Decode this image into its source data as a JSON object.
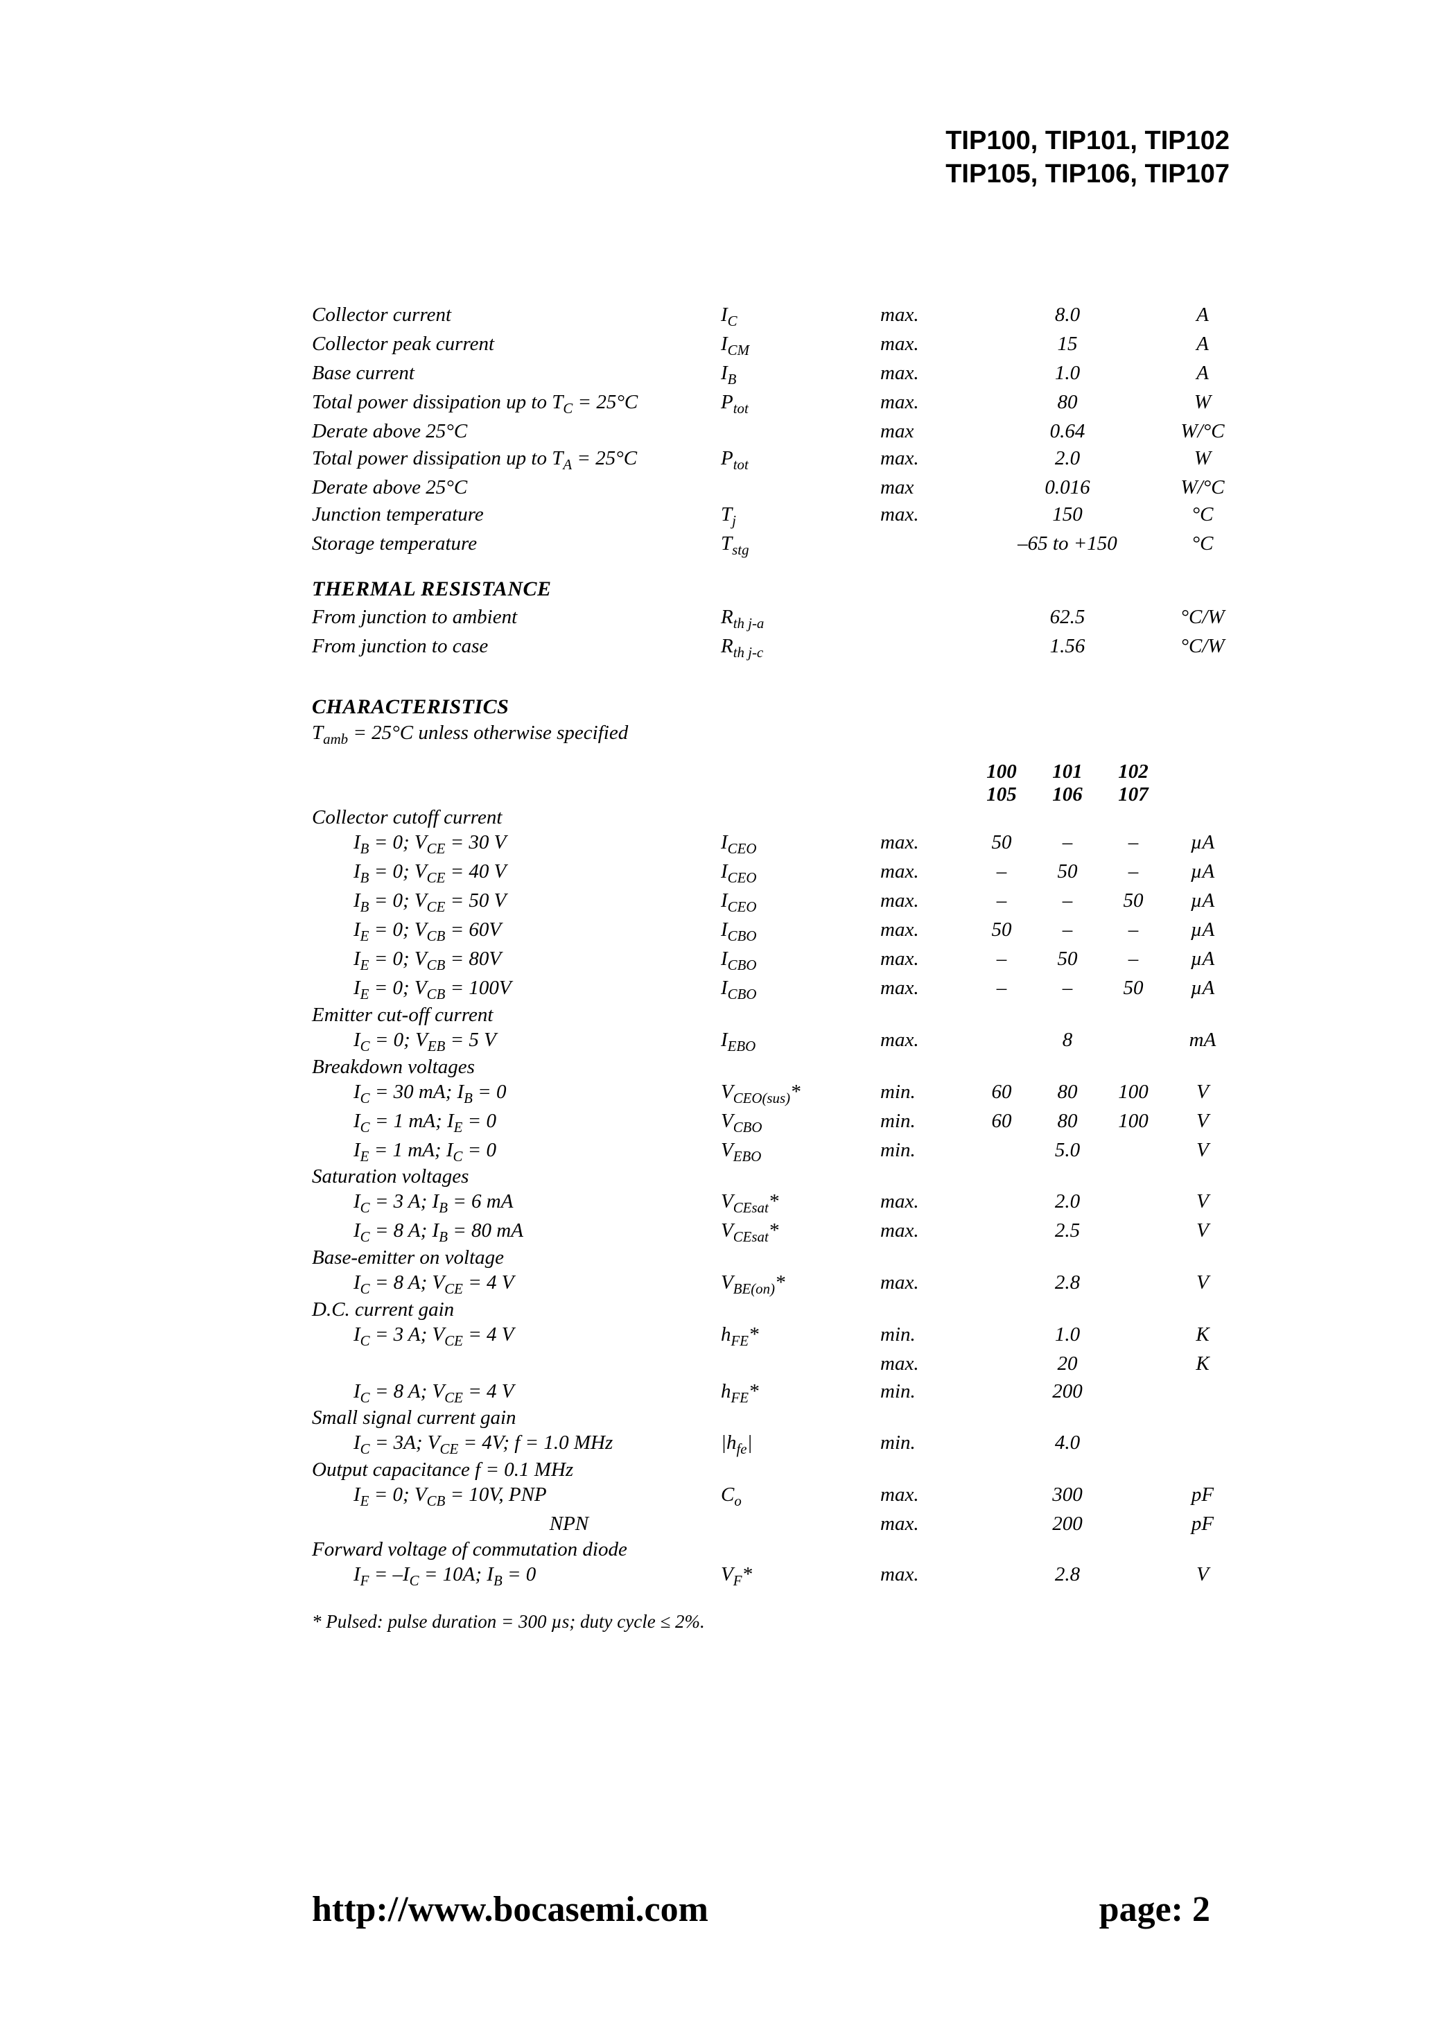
{
  "header": {
    "line1": "TIP100, TIP101, TIP102",
    "line2": "TIP105, TIP106, TIP107"
  },
  "abs_max": [
    {
      "label": "Collector current",
      "sym": "I_C",
      "lim": "max.",
      "val": "8.0",
      "unit": "A"
    },
    {
      "label": "Collector peak current",
      "sym": "I_CM",
      "lim": "max.",
      "val": "15",
      "unit": "A"
    },
    {
      "label": "Base current",
      "sym": "I_B",
      "lim": "max.",
      "val": "1.0",
      "unit": "A"
    },
    {
      "label": "Total power dissipation up to T_C = 25°C",
      "sym": "P_tot",
      "lim": "max.",
      "val": "80",
      "unit": "W"
    },
    {
      "label": "Derate above 25°C",
      "sym": "",
      "lim": "max",
      "val": "0.64",
      "unit": "W/°C"
    },
    {
      "label": "Total power dissipation up to T_A = 25°C",
      "sym": "P_tot",
      "lim": "max.",
      "val": "2.0",
      "unit": "W"
    },
    {
      "label": "Derate above 25°C",
      "sym": "",
      "lim": "max",
      "val": "0.016",
      "unit": "W/°C"
    },
    {
      "label": "Junction temperature",
      "sym": "T_j",
      "lim": "max.",
      "val": "150",
      "unit": "°C"
    },
    {
      "label": "Storage temperature",
      "sym": "T_stg",
      "lim": "",
      "val": "–65 to +150",
      "unit": "°C"
    }
  ],
  "thermal_title": "THERMAL RESISTANCE",
  "thermal": [
    {
      "label": "From junction to ambient",
      "sym": "R_th j-a",
      "val": "62.5",
      "unit": "°C/W"
    },
    {
      "label": "From junction to case",
      "sym": "R_th j-c",
      "val": "1.56",
      "unit": "°C/W"
    }
  ],
  "char_title": "CHARACTERISTICS",
  "char_cond": "T_amb = 25°C unless otherwise specified",
  "family_cols": {
    "a_top": "100",
    "b_top": "101",
    "c_top": "102",
    "a_bot": "105",
    "b_bot": "106",
    "c_bot": "107"
  },
  "groups": [
    {
      "head": "Collector cutoff current",
      "rows": [
        {
          "cond": "I_B = 0; V_CE = 30 V",
          "sym": "I_CEO",
          "lim": "max.",
          "v1": "50",
          "v2": "–",
          "v3": "–",
          "unit": "µA"
        },
        {
          "cond": "I_B = 0; V_CE = 40 V",
          "sym": "I_CEO",
          "lim": "max.",
          "v1": "–",
          "v2": "50",
          "v3": "–",
          "unit": "µA"
        },
        {
          "cond": "I_B = 0; V_CE = 50 V",
          "sym": "I_CEO",
          "lim": "max.",
          "v1": "–",
          "v2": "–",
          "v3": "50",
          "unit": "µA"
        },
        {
          "cond": "I_E = 0; V_CB = 60V",
          "sym": "I_CBO",
          "lim": "max.",
          "v1": "50",
          "v2": "–",
          "v3": "–",
          "unit": "µA"
        },
        {
          "cond": "I_E = 0; V_CB = 80V",
          "sym": "I_CBO",
          "lim": "max.",
          "v1": "–",
          "v2": "50",
          "v3": "–",
          "unit": "µA"
        },
        {
          "cond": "I_E = 0; V_CB = 100V",
          "sym": "I_CBO",
          "lim": "max.",
          "v1": "–",
          "v2": "–",
          "v3": "50",
          "unit": "µA"
        }
      ]
    },
    {
      "head": "Emitter cut-off current",
      "rows": [
        {
          "cond": "I_C = 0; V_EB = 5 V",
          "sym": "I_EBO",
          "lim": "max.",
          "v1": "",
          "v2": "8",
          "v3": "",
          "unit": "mA"
        }
      ]
    },
    {
      "head": "Breakdown voltages",
      "rows": [
        {
          "cond": "I_C = 30 mA; I_B = 0",
          "sym": "V_CEO(sus)*",
          "lim": "min.",
          "v1": "60",
          "v2": "80",
          "v3": "100",
          "unit": "V"
        },
        {
          "cond": "I_C = 1 mA; I_E = 0",
          "sym": "V_CBO",
          "lim": "min.",
          "v1": "60",
          "v2": "80",
          "v3": "100",
          "unit": "V"
        },
        {
          "cond": "I_E = 1 mA; I_C = 0",
          "sym": "V_EBO",
          "lim": "min.",
          "v1": "",
          "v2": "5.0",
          "v3": "",
          "unit": "V"
        }
      ]
    },
    {
      "head": "Saturation voltages",
      "rows": [
        {
          "cond": "I_C = 3 A; I_B = 6 mA",
          "sym": "V_CEsat*",
          "lim": "max.",
          "v1": "",
          "v2": "2.0",
          "v3": "",
          "unit": "V"
        },
        {
          "cond": "I_C = 8 A; I_B = 80 mA",
          "sym": "V_CEsat*",
          "lim": "max.",
          "v1": "",
          "v2": "2.5",
          "v3": "",
          "unit": "V"
        }
      ]
    },
    {
      "head": "Base-emitter on voltage",
      "rows": [
        {
          "cond": "I_C = 8 A; V_CE = 4 V",
          "sym": "V_BE(on)*",
          "lim": "max.",
          "v1": "",
          "v2": "2.8",
          "v3": "",
          "unit": "V"
        }
      ]
    },
    {
      "head": "D.C. current gain",
      "rows": [
        {
          "cond": "I_C = 3 A; V_CE = 4 V",
          "sym": "h_FE*",
          "lim": "min.",
          "v1": "",
          "v2": "1.0",
          "v3": "",
          "unit": "K"
        },
        {
          "cond": "",
          "sym": "",
          "lim": "max.",
          "v1": "",
          "v2": "20",
          "v3": "",
          "unit": "K"
        },
        {
          "cond": " ",
          "sym": "",
          "lim": "",
          "v1": "",
          "v2": "",
          "v3": "",
          "unit": ""
        },
        {
          "cond": "I_C = 8 A; V_CE = 4 V",
          "sym": "h_FE*",
          "lim": "min.",
          "v1": "",
          "v2": "200",
          "v3": "",
          "unit": ""
        }
      ]
    },
    {
      "head": "Small signal current gain",
      "rows": [
        {
          "cond": "I_C = 3A; V_CE = 4V; f = 1.0 MHz",
          "sym": "|h_fe|",
          "lim": "min.",
          "v1": "",
          "v2": "4.0",
          "v3": "",
          "unit": ""
        }
      ]
    },
    {
      "head": "Output capacitance f = 0.1 MHz",
      "rows": [
        {
          "cond": "I_E = 0; V_CB = 10V,     PNP",
          "sym": "C_o",
          "lim": "max.",
          "v1": "",
          "v2": "300",
          "v3": "",
          "unit": "pF"
        },
        {
          "cond": "                                       NPN",
          "sym": "",
          "lim": "max.",
          "v1": "",
          "v2": "200",
          "v3": "",
          "unit": "pF"
        }
      ]
    },
    {
      "head": "Forward voltage of commutation diode",
      "rows": [
        {
          "cond": "I_F = –I_C = 10A; I_B = 0",
          "sym": "V_F*",
          "lim": "max.",
          "v1": "",
          "v2": "2.8",
          "v3": "",
          "unit": "V"
        }
      ]
    }
  ],
  "footnote": "* Pulsed: pulse duration = 300 µs; duty cycle ≤ 2%.",
  "footer": {
    "url": "http://www.bocasemi.com",
    "page": "page: 2"
  }
}
